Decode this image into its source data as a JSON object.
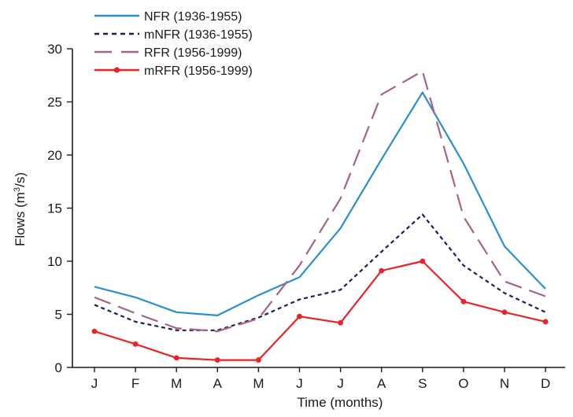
{
  "chart_data": {
    "type": "line",
    "title": "",
    "xlabel": "Time (months)",
    "ylabel_main": "Flows (m",
    "ylabel_sup": "3",
    "ylabel_tail": "/s)",
    "categories": [
      "J",
      "F",
      "M",
      "A",
      "M",
      "J",
      "J",
      "A",
      "S",
      "O",
      "N",
      "D"
    ],
    "ylim": [
      0,
      30
    ],
    "yticks": [
      0,
      5,
      10,
      15,
      20,
      25,
      30
    ],
    "grid": false,
    "legend_position": "top-left",
    "series": [
      {
        "name": "NFR (1936-1955)",
        "style": "solid",
        "marker": "none",
        "color": "#2a8fd0",
        "values": [
          7.6,
          6.6,
          5.2,
          4.9,
          6.8,
          8.5,
          13.1,
          19.6,
          25.9,
          19.2,
          11.4,
          7.4
        ]
      },
      {
        "name": "mNFR (1936-1955)",
        "style": "dotted",
        "marker": "none",
        "color": "#1c1f5e",
        "values": [
          5.9,
          4.3,
          3.5,
          3.5,
          4.7,
          6.4,
          7.3,
          10.9,
          14.4,
          9.6,
          7.0,
          5.2
        ]
      },
      {
        "name": "RFR (1956-1999)",
        "style": "dashed",
        "marker": "none",
        "color": "#a6628a",
        "values": [
          6.6,
          5.1,
          3.7,
          3.4,
          4.6,
          9.6,
          15.9,
          25.7,
          27.9,
          14.2,
          8.1,
          6.7
        ]
      },
      {
        "name": "mRFR (1956-1999)",
        "style": "solid",
        "marker": "circle",
        "color": "#e8242a",
        "values": [
          3.4,
          2.2,
          0.9,
          0.7,
          0.7,
          4.8,
          4.2,
          9.1,
          10.0,
          6.2,
          5.2,
          4.3
        ]
      }
    ]
  }
}
